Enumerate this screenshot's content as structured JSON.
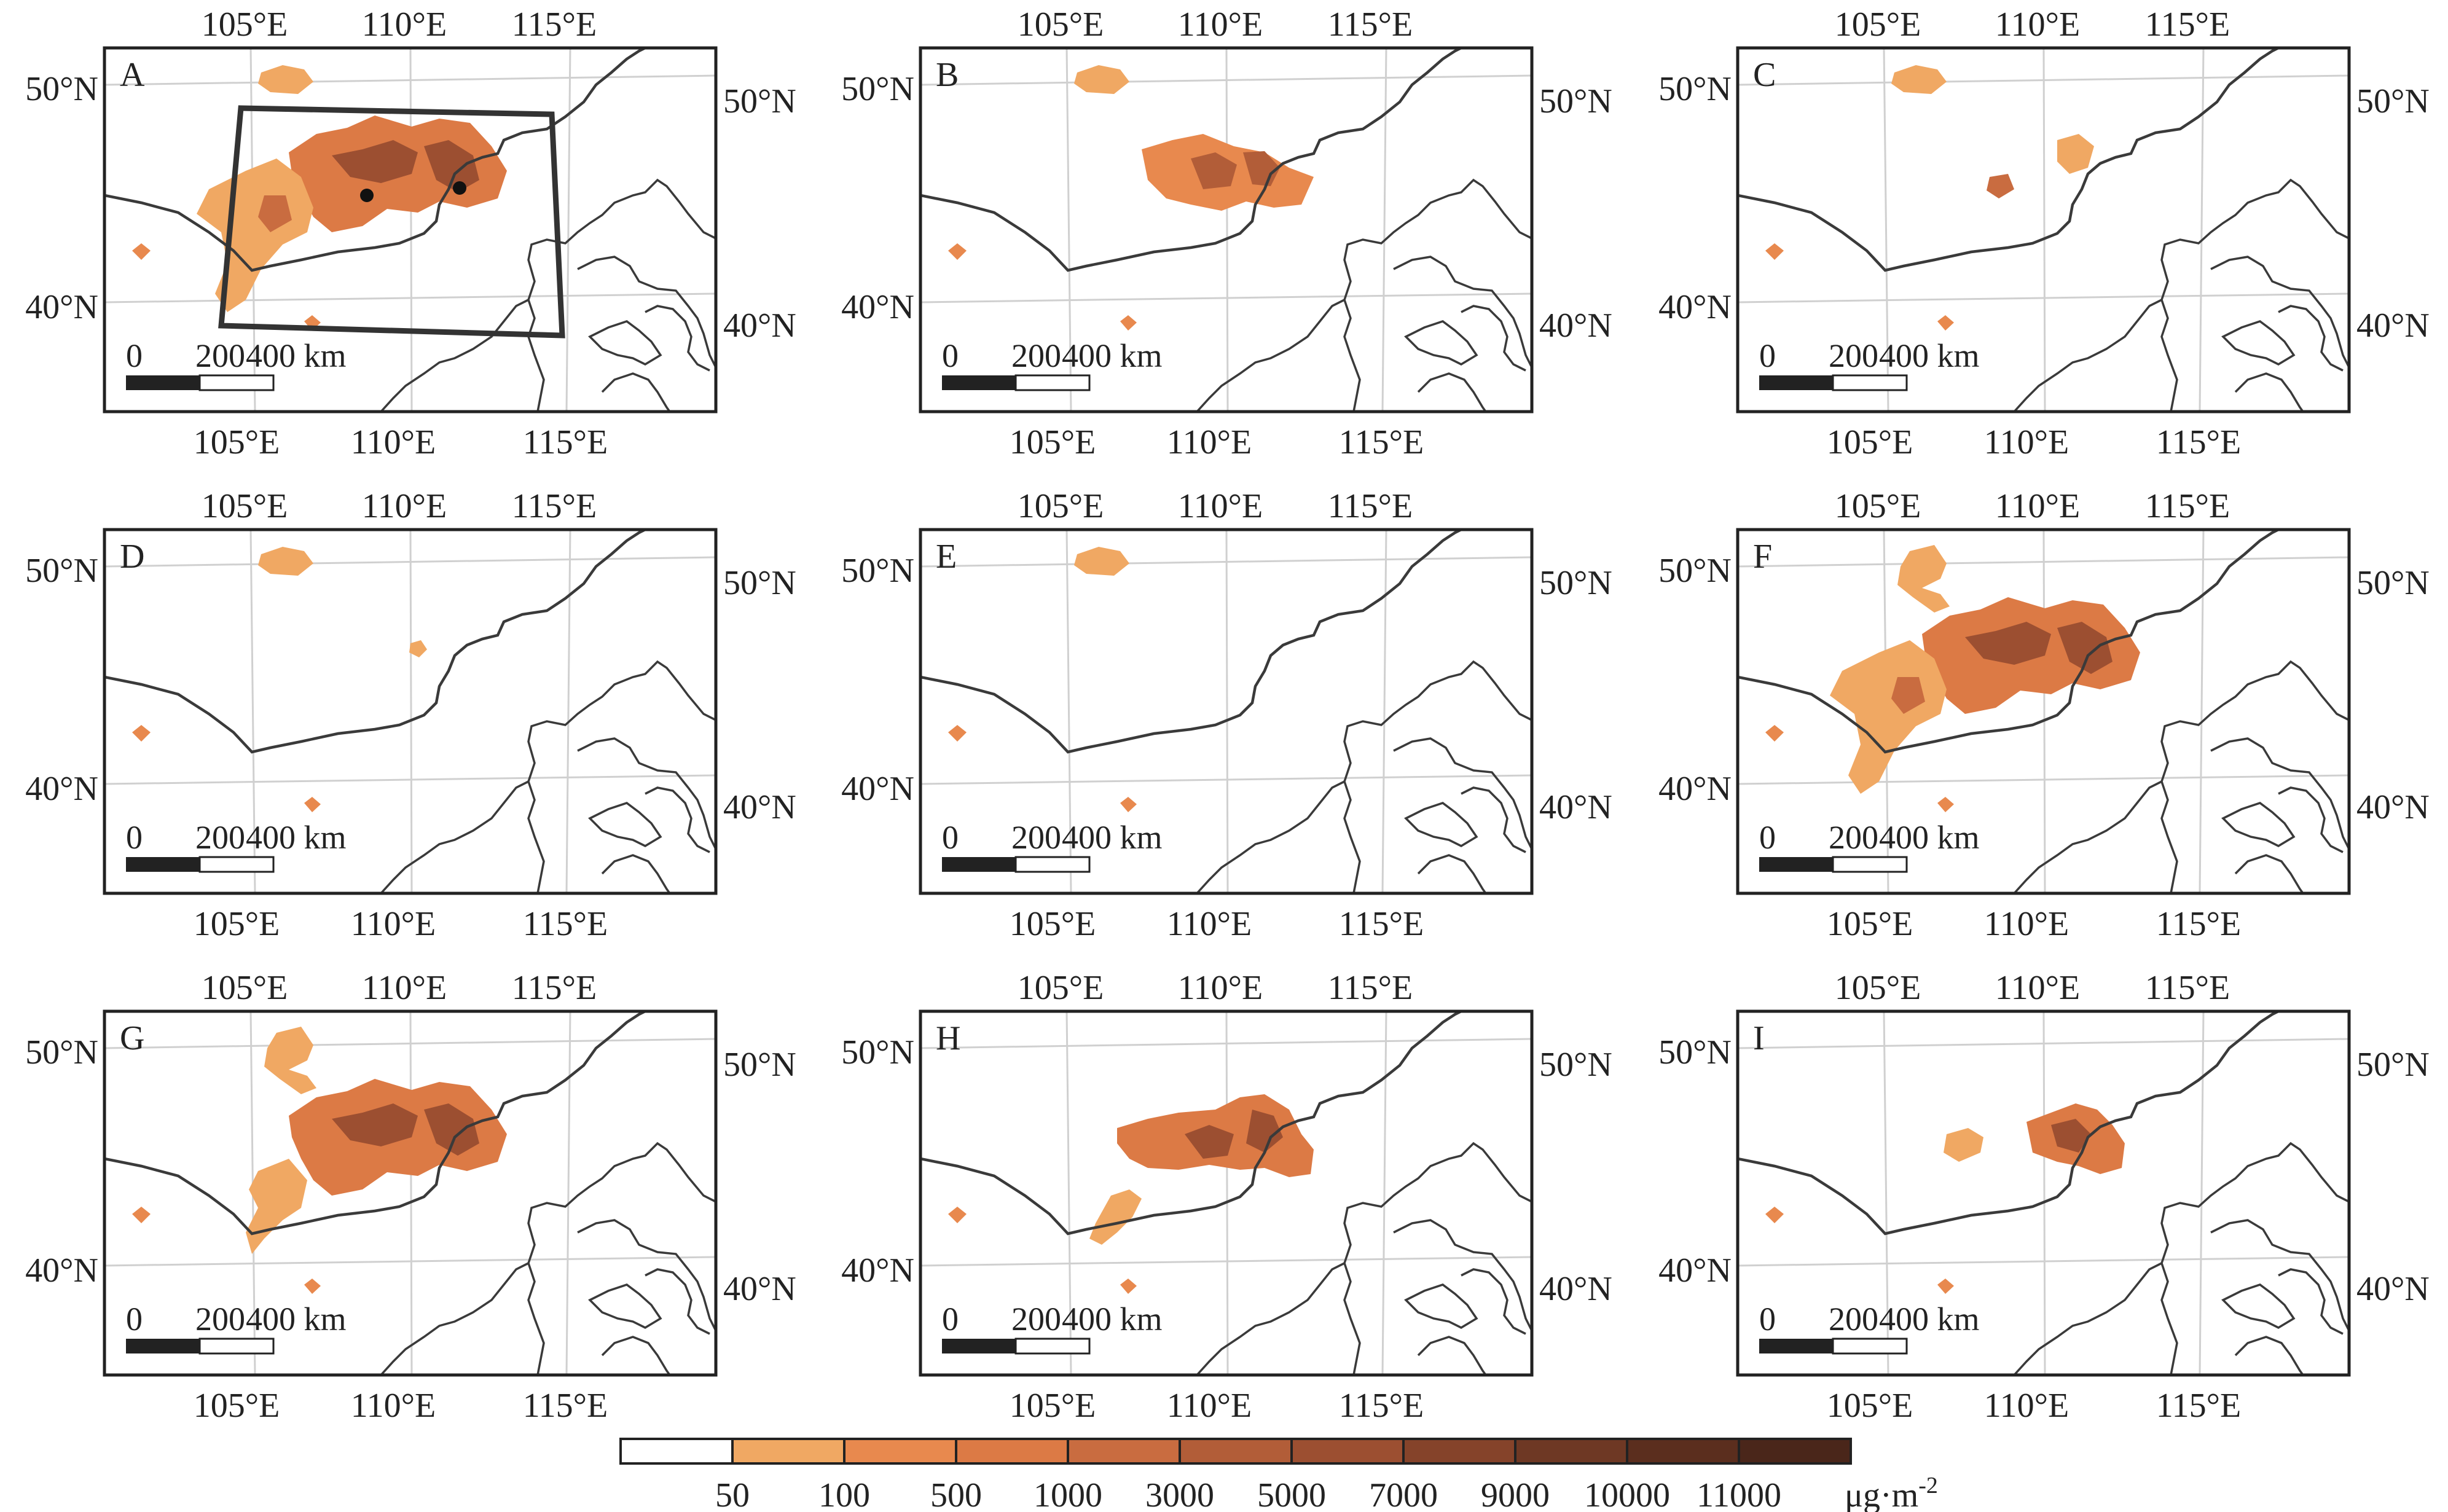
{
  "figure": {
    "panels": [
      {
        "id": "A",
        "label": "A",
        "has_box": true,
        "has_points": true,
        "plume": [
          {
            "shape": "main",
            "level": 5
          },
          {
            "shape": "west",
            "level": 3
          },
          {
            "shape": "north-blob",
            "level": 2
          }
        ]
      },
      {
        "id": "B",
        "label": "B",
        "plume": [
          {
            "shape": "mid",
            "level": 4
          },
          {
            "shape": "north-blob",
            "level": 2
          }
        ]
      },
      {
        "id": "C",
        "label": "C",
        "plume": [
          {
            "shape": "small",
            "level": 3
          },
          {
            "shape": "north-blob",
            "level": 2
          }
        ]
      },
      {
        "id": "D",
        "label": "D",
        "plume": [
          {
            "shape": "dot",
            "level": 2
          },
          {
            "shape": "north-blob",
            "level": 2
          }
        ]
      },
      {
        "id": "E",
        "label": "E",
        "plume": [
          {
            "shape": "north-blob",
            "level": 2
          }
        ]
      },
      {
        "id": "F",
        "label": "F",
        "plume": [
          {
            "shape": "main",
            "level": 5
          },
          {
            "shape": "west",
            "level": 3
          },
          {
            "shape": "north-wide",
            "level": 2
          }
        ]
      },
      {
        "id": "G",
        "label": "G",
        "plume": [
          {
            "shape": "main",
            "level": 5
          },
          {
            "shape": "west-small",
            "level": 3
          },
          {
            "shape": "north-wide",
            "level": 2
          }
        ]
      },
      {
        "id": "H",
        "label": "H",
        "plume": [
          {
            "shape": "mid-east",
            "level": 5
          },
          {
            "shape": "sw-tail",
            "level": 3
          }
        ]
      },
      {
        "id": "I",
        "label": "I",
        "plume": [
          {
            "shape": "small-east",
            "level": 5
          },
          {
            "shape": "small-west",
            "level": 3
          }
        ]
      }
    ],
    "axis_labels": {
      "top_lon": [
        "105°E",
        "110°E",
        "115°E"
      ],
      "bottom_lon": [
        "105°E",
        "110°E",
        "115°E"
      ],
      "left_lat": [
        "50°N",
        "40°N"
      ],
      "right_lat": [
        "50°N",
        "40°N"
      ]
    },
    "scale_bar": {
      "labels": [
        "0",
        "200",
        "400 km"
      ]
    },
    "colorbar": {
      "ticks": [
        "50",
        "100",
        "500",
        "1000",
        "3000",
        "5000",
        "7000",
        "9000",
        "10000",
        "11000"
      ],
      "unit": "μg·m",
      "unit_sup": "-2",
      "colors": [
        "#ffffff",
        "#f0a863",
        "#e8894e",
        "#dc7a45",
        "#c96c40",
        "#b25d38",
        "#9c4f31",
        "#85432a",
        "#6e3824",
        "#5b2e1e",
        "#4a261a"
      ]
    },
    "colors": {
      "border": "#3a3a3a",
      "graticule": "#d0d0d0",
      "frame": "#222222"
    }
  }
}
